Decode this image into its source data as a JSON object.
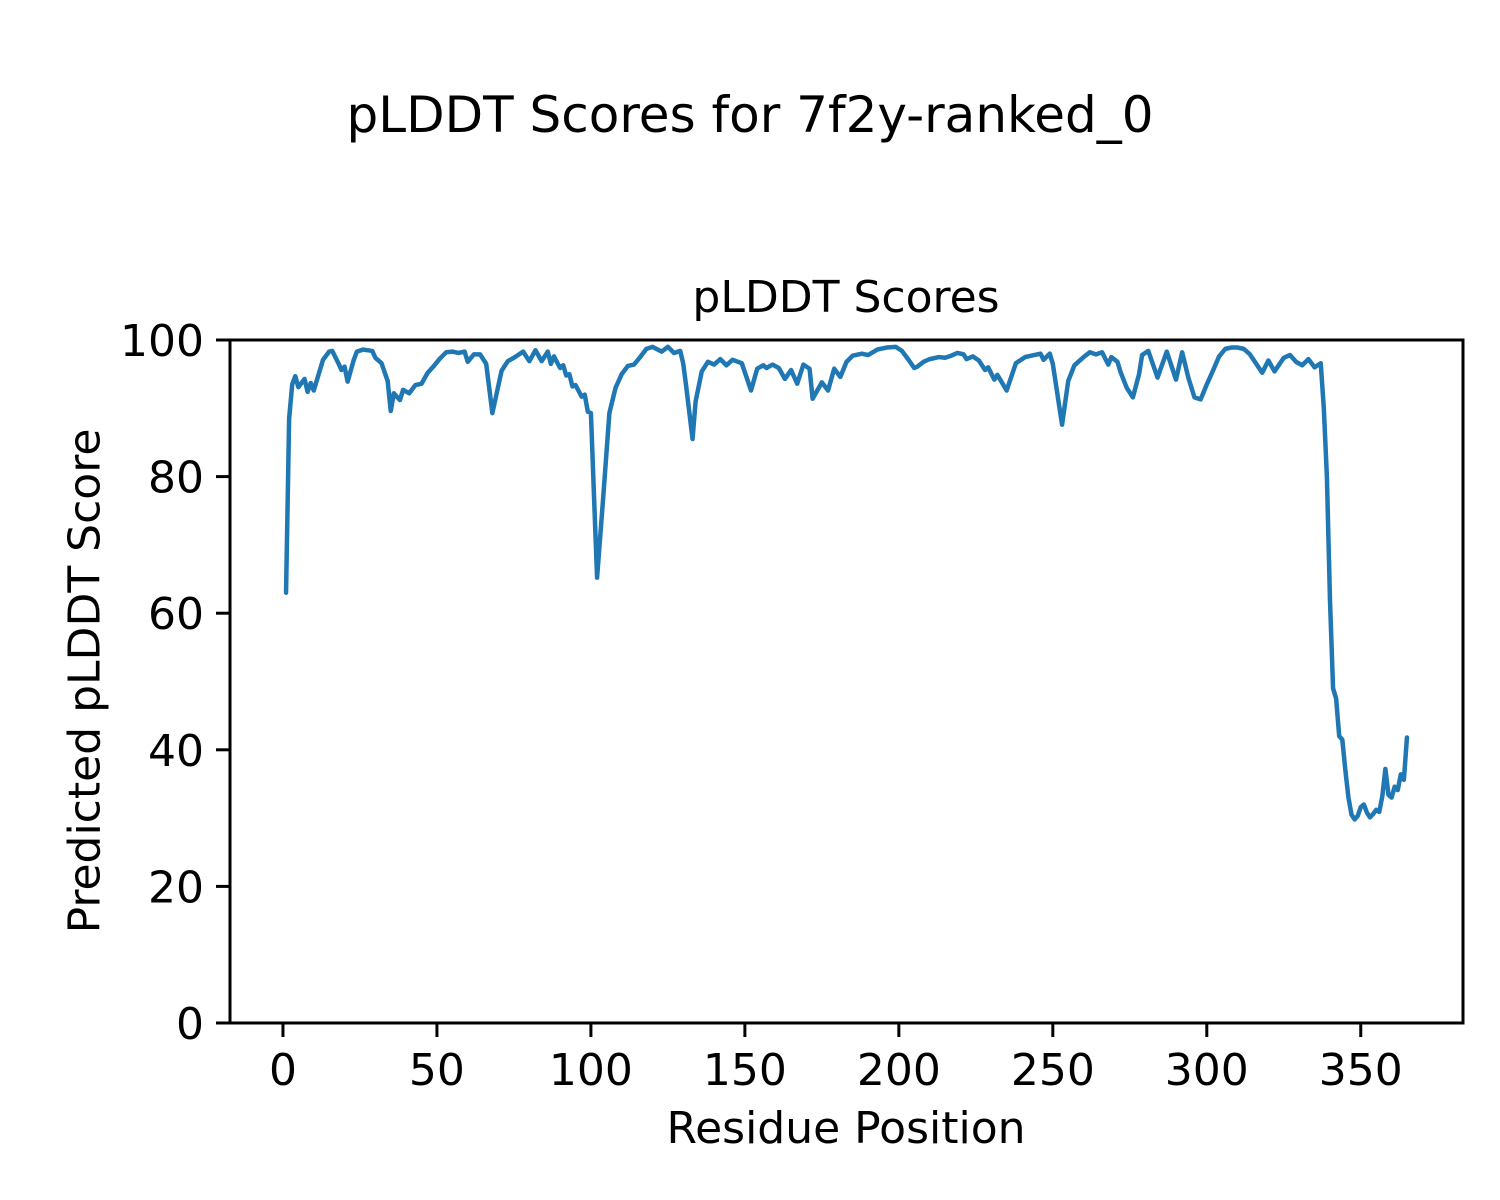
{
  "figure": {
    "suptitle": "pLDDT Scores for 7f2y-ranked_0"
  },
  "chart_data": {
    "type": "line",
    "title": "pLDDT Scores",
    "xlabel": "Residue Position",
    "ylabel": "Predicted pLDDT Score",
    "xlim": [
      -17.2,
      383.2
    ],
    "ylim": [
      0,
      100
    ],
    "xticks": [
      0,
      50,
      100,
      150,
      200,
      250,
      300,
      350
    ],
    "yticks": [
      0,
      20,
      40,
      60,
      80,
      100
    ],
    "grid": false,
    "legend": "none",
    "line_color": "#1f77b4",
    "line_width": 4.5,
    "series": [
      {
        "name": "pLDDT",
        "x": [
          1,
          2,
          3,
          4,
          5,
          7,
          8,
          9,
          10,
          13,
          15,
          16,
          18,
          19,
          20,
          21,
          23,
          24,
          26,
          29,
          30,
          32,
          34,
          35,
          36,
          38,
          39,
          41,
          43,
          45,
          47,
          49,
          51,
          53,
          55,
          57,
          59,
          60,
          62,
          64,
          66,
          68,
          71,
          73,
          75,
          78,
          80,
          82,
          84,
          86,
          87,
          88,
          90,
          91,
          92,
          93,
          94,
          95,
          97,
          98,
          99,
          100,
          102,
          104,
          106,
          108,
          110,
          112,
          114,
          116,
          118,
          120,
          123,
          125,
          127,
          129,
          130,
          131,
          133,
          134,
          136,
          138,
          140,
          142,
          144,
          146,
          149,
          152,
          154,
          156,
          157,
          159,
          161,
          163,
          165,
          167,
          169,
          171,
          172,
          175,
          177,
          179,
          181,
          183,
          185,
          188,
          190,
          193,
          196,
          199,
          201,
          203,
          205,
          206,
          208,
          210,
          213,
          215,
          217,
          219,
          221,
          222,
          224,
          226,
          228,
          229,
          231,
          232,
          235,
          238,
          241,
          243,
          246,
          247,
          249,
          250,
          253,
          255,
          257,
          260,
          262,
          264,
          266,
          268,
          269,
          271,
          272,
          274,
          276,
          278,
          279,
          281,
          284,
          287,
          290,
          292,
          294,
          296,
          298,
          300,
          302,
          304,
          306,
          308,
          310,
          312,
          314,
          318,
          320,
          322,
          325,
          327,
          329,
          331,
          333,
          335,
          337,
          338,
          339,
          340,
          341,
          342,
          343,
          344,
          345,
          346,
          347,
          348,
          349,
          350,
          351,
          352,
          353,
          354,
          355,
          356,
          357,
          358,
          359,
          360,
          361,
          362,
          363,
          364,
          365
        ],
        "y": [
          63,
          88.5,
          93.5,
          94.7,
          93.1,
          94.3,
          92.4,
          93.7,
          92.6,
          97.1,
          98.3,
          98.4,
          96.6,
          95.6,
          96.1,
          93.9,
          97.1,
          98.3,
          98.6,
          98.4,
          97.4,
          96.6,
          94,
          89.6,
          92.2,
          91.2,
          92.7,
          92.2,
          93.4,
          93.6,
          95.2,
          96.2,
          97.3,
          98.2,
          98.3,
          98.1,
          98.3,
          96.8,
          97.9,
          97.9,
          96.5,
          89.3,
          95.5,
          96.9,
          97.4,
          98.3,
          96.9,
          98.5,
          96.9,
          98.3,
          96.5,
          97.6,
          95.9,
          96.3,
          94.8,
          95,
          93.2,
          93.4,
          91.7,
          92,
          89.5,
          89.3,
          65.2,
          77,
          89.3,
          93,
          95,
          96.2,
          96.4,
          97.5,
          98.7,
          99,
          98.3,
          99,
          98.1,
          98.4,
          96.5,
          93,
          85.5,
          91,
          95.4,
          96.8,
          96.4,
          97.2,
          96.3,
          97.1,
          96.6,
          92.6,
          95.8,
          96.3,
          95.9,
          96.4,
          95.9,
          94.3,
          95.6,
          93.6,
          96.4,
          95.8,
          91.4,
          93.8,
          92.6,
          95.8,
          94.6,
          96.8,
          97.7,
          98,
          97.8,
          98.6,
          98.9,
          99,
          98.4,
          97.2,
          95.9,
          96.1,
          96.8,
          97.2,
          97.5,
          97.4,
          97.7,
          98.1,
          97.9,
          97.2,
          97.6,
          97,
          95.6,
          96,
          94.2,
          94.9,
          92.6,
          96.6,
          97.5,
          97.7,
          98,
          97.1,
          98,
          96.5,
          87.6,
          94,
          96.3,
          97.5,
          98.2,
          97.9,
          98.2,
          96.4,
          97.5,
          96.8,
          95.3,
          93,
          91.6,
          95,
          97.8,
          98.4,
          94.5,
          98.3,
          94.2,
          98.2,
          94.5,
          91.6,
          91.3,
          93.5,
          95.5,
          97.6,
          98.7,
          98.9,
          98.9,
          98.7,
          97.9,
          95.2,
          97,
          95.4,
          97.4,
          97.8,
          96.8,
          96.3,
          97.2,
          96,
          96.6,
          90,
          80,
          62,
          49,
          47.5,
          42,
          41.5,
          37,
          33,
          30.5,
          29.8,
          30.3,
          31.6,
          32,
          30.8,
          30.1,
          30.6,
          31.2,
          30.9,
          33.2,
          37.2,
          33.4,
          33,
          34.6,
          34.1,
          36.4,
          35.6,
          41.8
        ]
      }
    ]
  }
}
